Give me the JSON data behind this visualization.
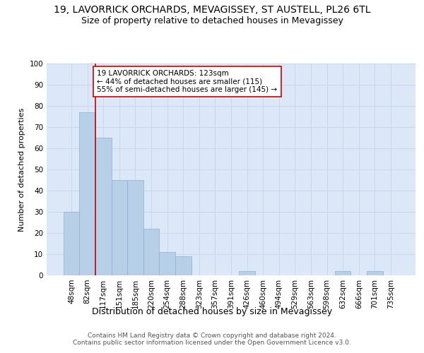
{
  "title": "19, LAVORRICK ORCHARDS, MEVAGISSEY, ST AUSTELL, PL26 6TL",
  "subtitle": "Size of property relative to detached houses in Mevagissey",
  "xlabel": "Distribution of detached houses by size in Mevagissey",
  "ylabel": "Number of detached properties",
  "categories": [
    "48sqm",
    "82sqm",
    "117sqm",
    "151sqm",
    "185sqm",
    "220sqm",
    "254sqm",
    "288sqm",
    "323sqm",
    "357sqm",
    "391sqm",
    "426sqm",
    "460sqm",
    "494sqm",
    "529sqm",
    "563sqm",
    "598sqm",
    "632sqm",
    "666sqm",
    "701sqm",
    "735sqm"
  ],
  "values": [
    30,
    77,
    65,
    45,
    45,
    22,
    11,
    9,
    0,
    0,
    0,
    2,
    0,
    0,
    0,
    0,
    0,
    2,
    0,
    2,
    0
  ],
  "bar_color": "#b8cfe8",
  "bar_edge_color": "#8ab0d0",
  "grid_color": "#c8d8ec",
  "background_color": "#dce8f8",
  "vline_color": "#cc0000",
  "vline_x_index": 2,
  "annotation_text": "19 LAVORRICK ORCHARDS: 123sqm\n← 44% of detached houses are smaller (115)\n55% of semi-detached houses are larger (145) →",
  "annotation_box_facecolor": "#ffffff",
  "annotation_box_edgecolor": "#cc0000",
  "ylim": [
    0,
    100
  ],
  "yticks": [
    0,
    10,
    20,
    30,
    40,
    50,
    60,
    70,
    80,
    90,
    100
  ],
  "title_fontsize": 10,
  "subtitle_fontsize": 9,
  "xlabel_fontsize": 9,
  "ylabel_fontsize": 8,
  "tick_fontsize": 7.5,
  "footer_fontsize": 6.5,
  "annotation_fontsize": 7.5,
  "footer": "Contains HM Land Registry data © Crown copyright and database right 2024.\nContains public sector information licensed under the Open Government Licence v3.0."
}
